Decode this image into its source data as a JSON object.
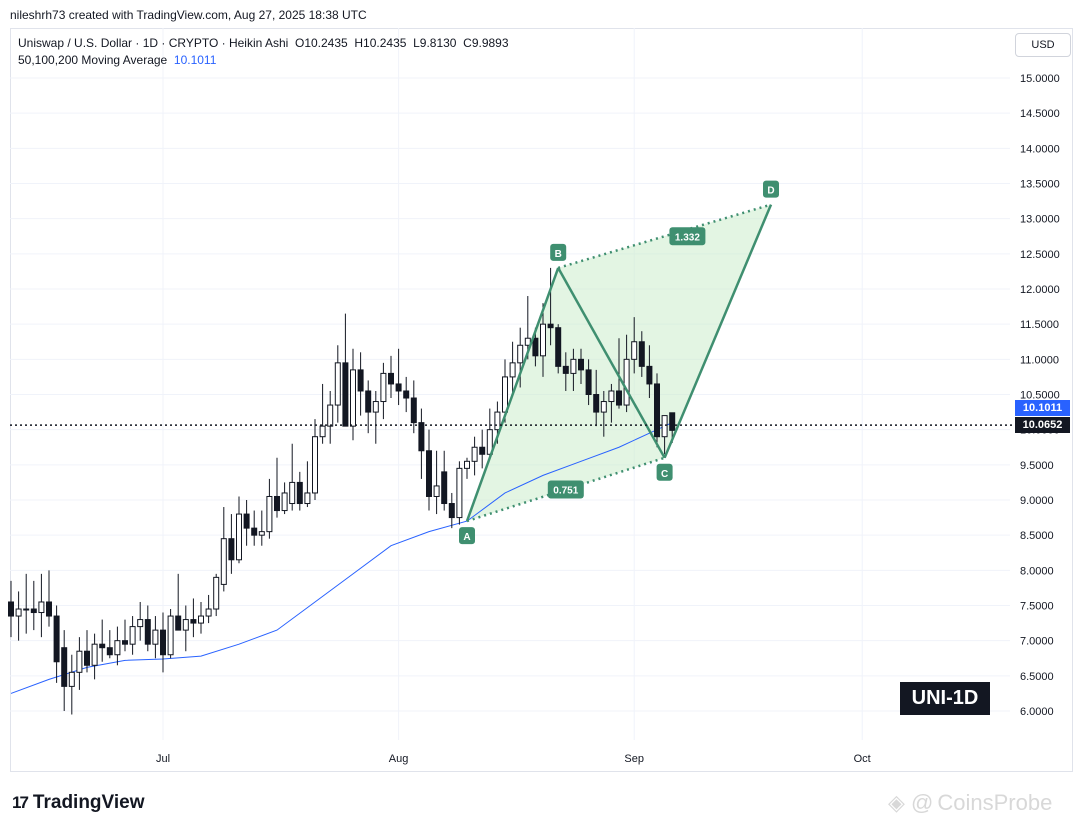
{
  "header": {
    "created_by": "nileshrh73 created with TradingView.com, Aug 27, 2025 18:38 UTC"
  },
  "legend": {
    "symbol_line": "Uniswap / U.S. Dollar · 1D · CRYPTO · Heikin Ashi",
    "open": "O10.2435",
    "high": "H10.2435",
    "low": "L9.8130",
    "close": "C9.9893",
    "ma_label": "50,100,200 Moving Average",
    "ma_value": "10.1011"
  },
  "currency_button": "USD",
  "badges": {
    "ma": "10.1011",
    "price": "10.0652"
  },
  "ticker_box": "UNI-1D",
  "branding": {
    "logo_mark": "17",
    "logo_text": "TradingView",
    "watermark_text": "CoinsProbe"
  },
  "colors": {
    "up": "#ffffff",
    "down": "#131722",
    "ma": "#2962ff",
    "pattern_line": "#3f8f70",
    "pattern_fill": "#c8ecc8",
    "label_bg": "#3f8f70"
  },
  "chart_data": {
    "type": "candlestick",
    "style": "Heikin Ashi",
    "ylim": [
      5.7,
      15.5
    ],
    "y_ticks": [
      "15.0000",
      "14.5000",
      "14.0000",
      "13.5000",
      "13.0000",
      "12.5000",
      "12.0000",
      "11.5000",
      "11.0000",
      "10.5000",
      "10.0000",
      "9.5000",
      "9.0000",
      "8.5000",
      "8.0000",
      "7.5000",
      "7.0000",
      "6.5000",
      "6.0000"
    ],
    "x_ticks": [
      {
        "label": "Jul",
        "day": 20
      },
      {
        "label": "Aug",
        "day": 51
      },
      {
        "label": "Sep",
        "day": 82
      },
      {
        "label": "Oct",
        "day": 112
      }
    ],
    "current_price": 10.0652,
    "ma_value": 10.1011,
    "candles": [
      {
        "d": 0,
        "o": 7.55,
        "h": 7.85,
        "l": 7.05,
        "c": 7.35
      },
      {
        "d": 1,
        "o": 7.35,
        "h": 7.7,
        "l": 7.0,
        "c": 7.45
      },
      {
        "d": 2,
        "o": 7.45,
        "h": 7.95,
        "l": 7.1,
        "c": 7.45
      },
      {
        "d": 3,
        "o": 7.45,
        "h": 7.85,
        "l": 7.15,
        "c": 7.4
      },
      {
        "d": 4,
        "o": 7.4,
        "h": 7.95,
        "l": 7.05,
        "c": 7.55
      },
      {
        "d": 5,
        "o": 7.55,
        "h": 8.0,
        "l": 7.2,
        "c": 7.35
      },
      {
        "d": 6,
        "o": 7.35,
        "h": 7.5,
        "l": 6.4,
        "c": 6.7
      },
      {
        "d": 7,
        "o": 6.9,
        "h": 7.15,
        "l": 6.0,
        "c": 6.35
      },
      {
        "d": 8,
        "o": 6.35,
        "h": 6.8,
        "l": 5.95,
        "c": 6.55
      },
      {
        "d": 9,
        "o": 6.55,
        "h": 7.05,
        "l": 6.3,
        "c": 6.85
      },
      {
        "d": 10,
        "o": 6.85,
        "h": 7.15,
        "l": 6.55,
        "c": 6.65
      },
      {
        "d": 11,
        "o": 6.65,
        "h": 7.1,
        "l": 6.45,
        "c": 6.95
      },
      {
        "d": 12,
        "o": 6.95,
        "h": 7.3,
        "l": 6.7,
        "c": 6.9
      },
      {
        "d": 13,
        "o": 6.9,
        "h": 7.15,
        "l": 6.75,
        "c": 6.8
      },
      {
        "d": 14,
        "o": 6.8,
        "h": 7.2,
        "l": 6.65,
        "c": 7.0
      },
      {
        "d": 15,
        "o": 7.0,
        "h": 7.3,
        "l": 6.85,
        "c": 6.95
      },
      {
        "d": 16,
        "o": 6.95,
        "h": 7.35,
        "l": 6.8,
        "c": 7.2
      },
      {
        "d": 17,
        "o": 7.2,
        "h": 7.55,
        "l": 7.0,
        "c": 7.3
      },
      {
        "d": 18,
        "o": 7.3,
        "h": 7.5,
        "l": 6.85,
        "c": 6.95
      },
      {
        "d": 19,
        "o": 6.95,
        "h": 7.35,
        "l": 6.75,
        "c": 7.15
      },
      {
        "d": 20,
        "o": 7.15,
        "h": 7.4,
        "l": 6.55,
        "c": 6.8
      },
      {
        "d": 21,
        "o": 6.8,
        "h": 7.45,
        "l": 6.75,
        "c": 7.35
      },
      {
        "d": 22,
        "o": 7.35,
        "h": 7.95,
        "l": 7.2,
        "c": 7.15
      },
      {
        "d": 23,
        "o": 7.15,
        "h": 7.5,
        "l": 6.85,
        "c": 7.3
      },
      {
        "d": 24,
        "o": 7.3,
        "h": 7.6,
        "l": 7.05,
        "c": 7.25
      },
      {
        "d": 25,
        "o": 7.25,
        "h": 7.55,
        "l": 7.1,
        "c": 7.35
      },
      {
        "d": 26,
        "o": 7.35,
        "h": 7.65,
        "l": 7.25,
        "c": 7.45
      },
      {
        "d": 27,
        "o": 7.45,
        "h": 7.95,
        "l": 7.35,
        "c": 7.9
      },
      {
        "d": 28,
        "o": 7.8,
        "h": 8.9,
        "l": 7.7,
        "c": 8.45
      },
      {
        "d": 29,
        "o": 8.45,
        "h": 8.8,
        "l": 7.95,
        "c": 8.15
      },
      {
        "d": 30,
        "o": 8.15,
        "h": 9.05,
        "l": 8.1,
        "c": 8.8
      },
      {
        "d": 31,
        "o": 8.8,
        "h": 9.0,
        "l": 8.35,
        "c": 8.6
      },
      {
        "d": 32,
        "o": 8.6,
        "h": 8.85,
        "l": 8.35,
        "c": 8.5
      },
      {
        "d": 33,
        "o": 8.5,
        "h": 8.85,
        "l": 8.35,
        "c": 8.55
      },
      {
        "d": 34,
        "o": 8.55,
        "h": 9.3,
        "l": 8.45,
        "c": 9.05
      },
      {
        "d": 35,
        "o": 9.05,
        "h": 9.6,
        "l": 8.75,
        "c": 8.85
      },
      {
        "d": 36,
        "o": 8.85,
        "h": 9.25,
        "l": 8.8,
        "c": 9.1
      },
      {
        "d": 37,
        "o": 8.95,
        "h": 9.8,
        "l": 8.85,
        "c": 9.25
      },
      {
        "d": 38,
        "o": 9.25,
        "h": 9.4,
        "l": 8.85,
        "c": 8.95
      },
      {
        "d": 39,
        "o": 8.95,
        "h": 9.55,
        "l": 8.9,
        "c": 9.1
      },
      {
        "d": 40,
        "o": 9.1,
        "h": 10.15,
        "l": 9.0,
        "c": 9.9
      },
      {
        "d": 41,
        "o": 9.9,
        "h": 10.65,
        "l": 9.8,
        "c": 10.05
      },
      {
        "d": 42,
        "o": 10.05,
        "h": 10.55,
        "l": 9.8,
        "c": 10.35
      },
      {
        "d": 43,
        "o": 10.35,
        "h": 11.2,
        "l": 10.1,
        "c": 10.95
      },
      {
        "d": 44,
        "o": 10.95,
        "h": 11.65,
        "l": 10.05,
        "c": 10.05
      },
      {
        "d": 45,
        "o": 10.05,
        "h": 11.15,
        "l": 9.85,
        "c": 10.85
      },
      {
        "d": 46,
        "o": 10.85,
        "h": 11.1,
        "l": 10.2,
        "c": 10.55
      },
      {
        "d": 47,
        "o": 10.55,
        "h": 10.7,
        "l": 9.95,
        "c": 10.25
      },
      {
        "d": 48,
        "o": 10.25,
        "h": 10.55,
        "l": 9.8,
        "c": 10.4
      },
      {
        "d": 49,
        "o": 10.4,
        "h": 10.95,
        "l": 10.15,
        "c": 10.8
      },
      {
        "d": 50,
        "o": 10.8,
        "h": 11.05,
        "l": 10.45,
        "c": 10.65
      },
      {
        "d": 51,
        "o": 10.65,
        "h": 11.15,
        "l": 10.35,
        "c": 10.55
      },
      {
        "d": 52,
        "o": 10.55,
        "h": 10.75,
        "l": 10.25,
        "c": 10.45
      },
      {
        "d": 53,
        "o": 10.45,
        "h": 10.7,
        "l": 9.95,
        "c": 10.1
      },
      {
        "d": 54,
        "o": 10.1,
        "h": 10.3,
        "l": 9.3,
        "c": 9.7
      },
      {
        "d": 55,
        "o": 9.7,
        "h": 10.0,
        "l": 8.85,
        "c": 9.05
      },
      {
        "d": 56,
        "o": 9.05,
        "h": 9.7,
        "l": 8.8,
        "c": 9.2
      },
      {
        "d": 57,
        "o": 9.4,
        "h": 9.7,
        "l": 8.85,
        "c": 8.95
      },
      {
        "d": 58,
        "o": 8.95,
        "h": 9.1,
        "l": 8.6,
        "c": 8.75
      },
      {
        "d": 59,
        "o": 8.75,
        "h": 9.55,
        "l": 8.65,
        "c": 9.45
      },
      {
        "d": 60,
        "o": 9.45,
        "h": 9.6,
        "l": 9.3,
        "c": 9.55
      },
      {
        "d": 61,
        "o": 9.55,
        "h": 9.9,
        "l": 9.35,
        "c": 9.75
      },
      {
        "d": 62,
        "o": 9.75,
        "h": 10.0,
        "l": 9.45,
        "c": 9.65
      },
      {
        "d": 63,
        "o": 9.65,
        "h": 10.3,
        "l": 9.6,
        "c": 10.0
      },
      {
        "d": 64,
        "o": 10.0,
        "h": 10.4,
        "l": 9.8,
        "c": 10.25
      },
      {
        "d": 65,
        "o": 10.25,
        "h": 11.0,
        "l": 10.1,
        "c": 10.75
      },
      {
        "d": 66,
        "o": 10.75,
        "h": 11.25,
        "l": 10.5,
        "c": 10.95
      },
      {
        "d": 67,
        "o": 10.95,
        "h": 11.45,
        "l": 10.6,
        "c": 11.2
      },
      {
        "d": 68,
        "o": 11.2,
        "h": 11.9,
        "l": 11.0,
        "c": 11.3
      },
      {
        "d": 69,
        "o": 11.3,
        "h": 11.45,
        "l": 10.9,
        "c": 11.05
      },
      {
        "d": 70,
        "o": 11.05,
        "h": 11.8,
        "l": 10.75,
        "c": 11.5
      },
      {
        "d": 71,
        "o": 11.5,
        "h": 12.3,
        "l": 11.2,
        "c": 11.45
      },
      {
        "d": 72,
        "o": 11.45,
        "h": 11.5,
        "l": 10.8,
        "c": 10.9
      },
      {
        "d": 73,
        "o": 10.9,
        "h": 11.1,
        "l": 10.55,
        "c": 10.8
      },
      {
        "d": 74,
        "o": 10.8,
        "h": 11.15,
        "l": 10.55,
        "c": 11.0
      },
      {
        "d": 75,
        "o": 11.0,
        "h": 11.15,
        "l": 10.65,
        "c": 10.85
      },
      {
        "d": 76,
        "o": 10.85,
        "h": 11.0,
        "l": 10.35,
        "c": 10.5
      },
      {
        "d": 77,
        "o": 10.5,
        "h": 10.85,
        "l": 10.05,
        "c": 10.25
      },
      {
        "d": 78,
        "o": 10.25,
        "h": 10.55,
        "l": 9.9,
        "c": 10.4
      },
      {
        "d": 79,
        "o": 10.4,
        "h": 10.65,
        "l": 10.1,
        "c": 10.55
      },
      {
        "d": 80,
        "o": 10.55,
        "h": 11.3,
        "l": 10.3,
        "c": 10.35
      },
      {
        "d": 81,
        "o": 10.35,
        "h": 11.35,
        "l": 10.25,
        "c": 11.0
      },
      {
        "d": 82,
        "o": 11.0,
        "h": 11.6,
        "l": 10.8,
        "c": 11.25
      },
      {
        "d": 83,
        "o": 11.25,
        "h": 11.4,
        "l": 10.75,
        "c": 10.9
      },
      {
        "d": 84,
        "o": 10.9,
        "h": 11.2,
        "l": 10.45,
        "c": 10.65
      },
      {
        "d": 85,
        "o": 10.65,
        "h": 10.8,
        "l": 9.75,
        "c": 9.9
      },
      {
        "d": 86,
        "o": 9.9,
        "h": 10.2,
        "l": 9.65,
        "c": 10.2
      },
      {
        "d": 87,
        "o": 10.24,
        "h": 10.24,
        "l": 9.81,
        "c": 9.99
      }
    ],
    "moving_average": [
      {
        "d": 0,
        "v": 6.25
      },
      {
        "d": 5,
        "v": 6.45
      },
      {
        "d": 10,
        "v": 6.62
      },
      {
        "d": 15,
        "v": 6.72
      },
      {
        "d": 20,
        "v": 6.74
      },
      {
        "d": 25,
        "v": 6.78
      },
      {
        "d": 30,
        "v": 6.95
      },
      {
        "d": 35,
        "v": 7.15
      },
      {
        "d": 40,
        "v": 7.55
      },
      {
        "d": 45,
        "v": 7.95
      },
      {
        "d": 50,
        "v": 8.35
      },
      {
        "d": 55,
        "v": 8.55
      },
      {
        "d": 60,
        "v": 8.7
      },
      {
        "d": 65,
        "v": 9.1
      },
      {
        "d": 70,
        "v": 9.35
      },
      {
        "d": 75,
        "v": 9.55
      },
      {
        "d": 80,
        "v": 9.75
      },
      {
        "d": 85,
        "v": 10.0
      },
      {
        "d": 87,
        "v": 10.1
      }
    ],
    "pattern": {
      "points": [
        {
          "label": "A",
          "d": 60,
          "v": 8.7
        },
        {
          "label": "B",
          "d": 72,
          "v": 12.3
        },
        {
          "label": "C",
          "d": 86,
          "v": 9.6
        },
        {
          "label": "D",
          "d": 100,
          "v": 13.2
        }
      ],
      "ratios": [
        {
          "label": "1.332",
          "d": 89,
          "v": 12.75
        },
        {
          "label": "0.751",
          "d": 73,
          "v": 9.15
        }
      ]
    }
  }
}
